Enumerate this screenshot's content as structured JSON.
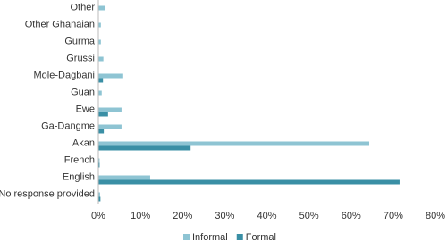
{
  "chart_data": {
    "type": "hbar",
    "categories": [
      "Other",
      "Other Ghanaian",
      "Gurma",
      "Grussi",
      "Mole-Dagbani",
      "Guan",
      "Ewe",
      "Ga-Dangme",
      "Akan",
      "French",
      "English",
      "No response provided"
    ],
    "series": [
      {
        "name": "Informal",
        "color": "#8ec4d3",
        "values": [
          1.7,
          0.6,
          0.6,
          1.2,
          5.9,
          0.8,
          5.5,
          5.5,
          64.3,
          0.3,
          12.3,
          0.4
        ]
      },
      {
        "name": "Formal",
        "color": "#3a8fa5",
        "values": [
          0,
          0,
          0,
          0,
          1.1,
          0,
          2.3,
          1.3,
          21.9,
          0.3,
          71.5,
          0.5
        ]
      }
    ],
    "xlim": [
      0,
      80
    ],
    "xticks": [
      {
        "value": 0,
        "label": "0%"
      },
      {
        "value": 10,
        "label": "10%"
      },
      {
        "value": 20,
        "label": "20%"
      },
      {
        "value": 30,
        "label": "30%"
      },
      {
        "value": 40,
        "label": "40%"
      },
      {
        "value": 50,
        "label": "50%"
      },
      {
        "value": 60,
        "label": "60%"
      },
      {
        "value": 70,
        "label": "70%"
      },
      {
        "value": 80,
        "label": "80%"
      }
    ],
    "grid": false,
    "legend": "bottom"
  }
}
